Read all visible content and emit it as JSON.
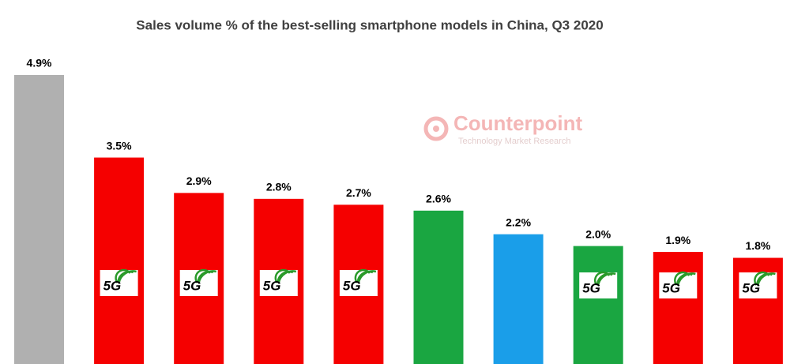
{
  "chart_data": {
    "type": "bar",
    "title": "Sales volume % of the best-selling smartphone models in China, Q3 2020",
    "categories": [
      null,
      null,
      null,
      null,
      null,
      null,
      null,
      null,
      null,
      null
    ],
    "values": [
      4.9,
      3.5,
      2.9,
      2.8,
      2.7,
      2.6,
      2.2,
      2.0,
      1.9,
      1.8
    ],
    "value_labels": [
      "4.9%",
      "3.5%",
      "2.9%",
      "2.8%",
      "2.7%",
      "2.6%",
      "2.2%",
      "2.0%",
      "1.9%",
      "1.8%"
    ],
    "colors": [
      "#b0b0b0",
      "#f50000",
      "#f50000",
      "#f50000",
      "#f50000",
      "#1aa641",
      "#1a9ee9",
      "#1aa641",
      "#f50000",
      "#f50000"
    ],
    "badge_labels": [
      null,
      "5G",
      "5G",
      "5G",
      "5G",
      null,
      null,
      "5G",
      "5G",
      "5G"
    ],
    "watermark": {
      "name": "Counterpoint",
      "tagline": "Technology Market Research"
    }
  }
}
